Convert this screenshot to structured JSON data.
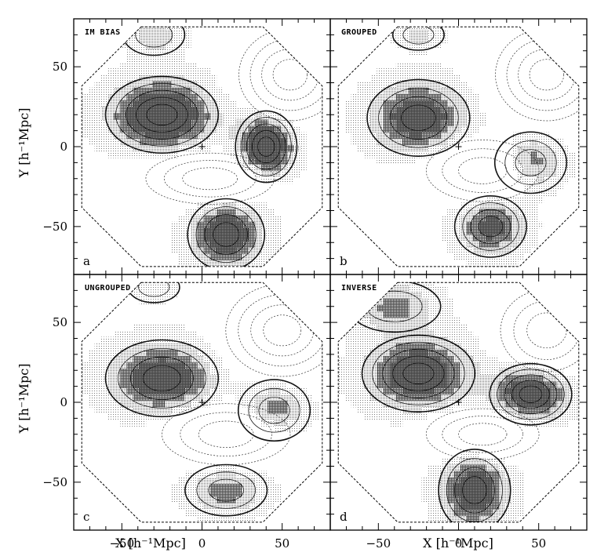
{
  "chart_data": {
    "type": "contour",
    "grid": "2x2",
    "xlabel": "X [h⁻¹Mpc]",
    "ylabel": "Y [h⁻¹Mpc]",
    "xlim": [
      -80,
      80
    ],
    "ylim": [
      -80,
      80
    ],
    "x_ticks": [
      "−50",
      "0",
      "50"
    ],
    "y_ticks": [
      "50",
      "0",
      "−50"
    ],
    "panels": [
      {
        "title": "IM BIAS",
        "letter": "a",
        "features": [
          {
            "kind": "overdensity",
            "x": -25,
            "y": 20,
            "strength": 3.2,
            "rx": 22,
            "ry": 15
          },
          {
            "kind": "overdensity",
            "x": 40,
            "y": 0,
            "strength": 3.4,
            "rx": 12,
            "ry": 14
          },
          {
            "kind": "overdensity",
            "x": 15,
            "y": -55,
            "strength": 2.8,
            "rx": 15,
            "ry": 14
          },
          {
            "kind": "overdensity",
            "x": -30,
            "y": 70,
            "strength": 1.2,
            "rx": 12,
            "ry": 8
          },
          {
            "kind": "underdensity",
            "x": 5,
            "y": -20,
            "strength": 2.0,
            "rx": 25,
            "ry": 10
          },
          {
            "kind": "underdensity",
            "x": 55,
            "y": 45,
            "strength": 2.4,
            "rx": 20,
            "ry": 18
          }
        ]
      },
      {
        "title": "GROUPED",
        "letter": "b",
        "features": [
          {
            "kind": "overdensity",
            "x": -25,
            "y": 18,
            "strength": 2.8,
            "rx": 20,
            "ry": 15
          },
          {
            "kind": "overdensity",
            "x": 45,
            "y": -10,
            "strength": 2.2,
            "rx": 14,
            "ry": 12
          },
          {
            "kind": "overdensity",
            "x": 20,
            "y": -50,
            "strength": 2.4,
            "rx": 14,
            "ry": 12
          },
          {
            "kind": "overdensity",
            "x": -25,
            "y": 70,
            "strength": 1.0,
            "rx": 10,
            "ry": 6
          },
          {
            "kind": "underdensity",
            "x": 15,
            "y": -15,
            "strength": 2.2,
            "rx": 22,
            "ry": 12
          },
          {
            "kind": "underdensity",
            "x": 55,
            "y": 45,
            "strength": 2.4,
            "rx": 20,
            "ry": 18
          }
        ]
      },
      {
        "title": "UNGROUPED",
        "letter": "c",
        "features": [
          {
            "kind": "overdensity",
            "x": -25,
            "y": 15,
            "strength": 2.8,
            "rx": 22,
            "ry": 15
          },
          {
            "kind": "overdensity",
            "x": 45,
            "y": -5,
            "strength": 2.0,
            "rx": 14,
            "ry": 12
          },
          {
            "kind": "overdensity",
            "x": 15,
            "y": -55,
            "strength": 1.8,
            "rx": 16,
            "ry": 10
          },
          {
            "kind": "overdensity",
            "x": -30,
            "y": 72,
            "strength": 0.8,
            "rx": 10,
            "ry": 6
          },
          {
            "kind": "underdensity",
            "x": 15,
            "y": -20,
            "strength": 2.0,
            "rx": 25,
            "ry": 12
          },
          {
            "kind": "underdensity",
            "x": 50,
            "y": 45,
            "strength": 2.6,
            "rx": 22,
            "ry": 18
          }
        ]
      },
      {
        "title": "INVERSE",
        "letter": "d",
        "features": [
          {
            "kind": "overdensity",
            "x": -25,
            "y": 18,
            "strength": 3.0,
            "rx": 22,
            "ry": 15
          },
          {
            "kind": "overdensity",
            "x": 45,
            "y": 5,
            "strength": 3.0,
            "rx": 16,
            "ry": 12
          },
          {
            "kind": "overdensity",
            "x": 10,
            "y": -55,
            "strength": 2.8,
            "rx": 14,
            "ry": 16
          },
          {
            "kind": "overdensity",
            "x": -40,
            "y": 60,
            "strength": 1.6,
            "rx": 18,
            "ry": 10
          },
          {
            "kind": "underdensity",
            "x": 15,
            "y": -20,
            "strength": 2.0,
            "rx": 22,
            "ry": 10
          },
          {
            "kind": "underdensity",
            "x": 55,
            "y": 45,
            "strength": 2.2,
            "rx": 18,
            "ry": 16
          }
        ]
      }
    ]
  }
}
